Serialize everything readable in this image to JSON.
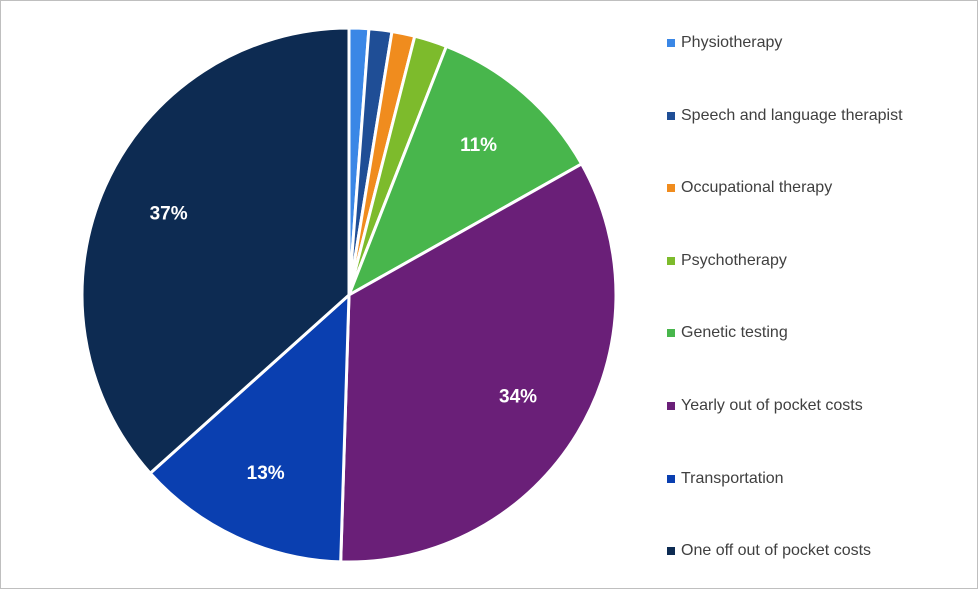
{
  "chart_data": {
    "type": "pie",
    "title": "",
    "legend_position": "right",
    "slices": [
      {
        "label": "Physiotherapy",
        "value": 1.2,
        "color": "#3a87e6",
        "data_label": ""
      },
      {
        "label": "Speech and language therapist",
        "value": 1.4,
        "color": "#1f4e96",
        "data_label": ""
      },
      {
        "label": "Occupational therapy",
        "value": 1.4,
        "color": "#f08c1e",
        "data_label": ""
      },
      {
        "label": "Psychotherapy",
        "value": 2.0,
        "color": "#7dbb2c",
        "data_label": ""
      },
      {
        "label": "Genetic testing",
        "value": 11,
        "color": "#48b64c",
        "data_label": "11%"
      },
      {
        "label": "Yearly out of pocket costs",
        "value": 34,
        "color": "#6a1f78",
        "data_label": "34%"
      },
      {
        "label": "Transportation",
        "value": 13,
        "color": "#0a3fb0",
        "data_label": "13%"
      },
      {
        "label": "One off out of pocket costs",
        "value": 37,
        "color": "#0d2b52",
        "data_label": "37%"
      }
    ]
  }
}
